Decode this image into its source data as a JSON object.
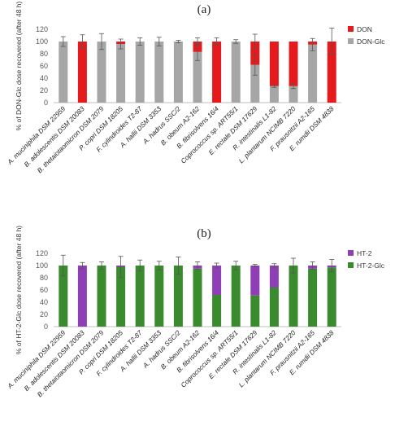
{
  "chart_data": [
    {
      "type": "bar",
      "stacked": true,
      "panel_label": "(a)",
      "ylabel": "% of DON-Glc dose recovered (after 48 h)",
      "ylim": [
        0,
        120
      ],
      "yticks": [
        0,
        20,
        40,
        60,
        80,
        100,
        120
      ],
      "grid": false,
      "legend_position": "top-right",
      "categories": [
        "A. muciniphila DSM 22959",
        "B. adolescentis DSM 20083",
        "B. thetaiotaomicron DSM 2079",
        "P. copri DSM 18205",
        "F. cylindroides T2-87",
        "A. hallii DSM 3353",
        "A. hadrus SSC/2",
        "B. obeum A2-162",
        "B. fibrisolvens 16/4",
        "Coprococcus sp. ART55/1",
        "E. rectale DSM 17629",
        "R. intestinalis L1-82",
        "L. plantarum NCIMB 7220",
        "F. prausnitzii A2-165",
        "E. rumdii DSM 4838"
      ],
      "series": [
        {
          "name": "DON-Glc",
          "color": "#a6a6a6",
          "values": [
            100,
            0,
            100,
            96,
            100,
            100,
            100,
            83,
            0,
            100,
            62,
            27,
            27,
            95,
            0
          ],
          "errors": [
            8,
            0,
            13,
            8,
            6,
            7,
            2,
            14,
            0,
            3,
            17,
            2,
            4,
            10,
            0
          ]
        },
        {
          "name": "DON",
          "color": "#e41a1c",
          "values": [
            0,
            100,
            0,
            4,
            0,
            0,
            0,
            17,
            100,
            0,
            38,
            73,
            73,
            5,
            100
          ],
          "errors": [
            0,
            11,
            0,
            0,
            0,
            0,
            0,
            6,
            6,
            0,
            12,
            0,
            0,
            0,
            22
          ]
        }
      ]
    },
    {
      "type": "bar",
      "stacked": true,
      "panel_label": "(b)",
      "ylabel": "% of HT-2-Glc dose recovered (after 48 h)",
      "ylim": [
        0,
        120
      ],
      "yticks": [
        0,
        20,
        40,
        60,
        80,
        100,
        120
      ],
      "grid": false,
      "legend_position": "top-right",
      "categories": [
        "A. muciniphila DSM 22959",
        "B. adolescentis DSM 20083",
        "B. thetaiotaomicron DSM 2079",
        "P. copri DSM 18205",
        "F. cylindroides T2-87",
        "A. hallii DSM 3353",
        "A. hadrus SSC/2",
        "B. obeum A2-162",
        "B. fibrisolvens 16/4",
        "Coprococcus sp. ART55/1",
        "E. rectale DSM 17629",
        "R. intestinalis L1-82",
        "L. plantarum NCIMB 7220",
        "F. prausnitzii A2-165",
        "E. rumdii DSM 4838"
      ],
      "series": [
        {
          "name": "HT-2-Glc",
          "color": "#3a8a2e",
          "values": [
            100,
            0,
            100,
            98,
            100,
            100,
            100,
            95,
            52,
            100,
            51,
            64,
            100,
            95,
            97
          ],
          "errors": [
            17,
            0,
            6,
            17,
            9,
            7,
            14,
            0,
            0,
            7,
            0,
            0,
            12,
            0,
            0
          ]
        },
        {
          "name": "HT-2",
          "color": "#8e3fb5",
          "values": [
            0,
            100,
            0,
            2,
            0,
            0,
            0,
            5,
            48,
            0,
            49,
            36,
            0,
            5,
            3
          ],
          "errors": [
            0,
            5,
            0,
            0,
            0,
            0,
            0,
            6,
            4,
            0,
            2,
            3,
            0,
            6,
            10
          ]
        }
      ]
    }
  ]
}
